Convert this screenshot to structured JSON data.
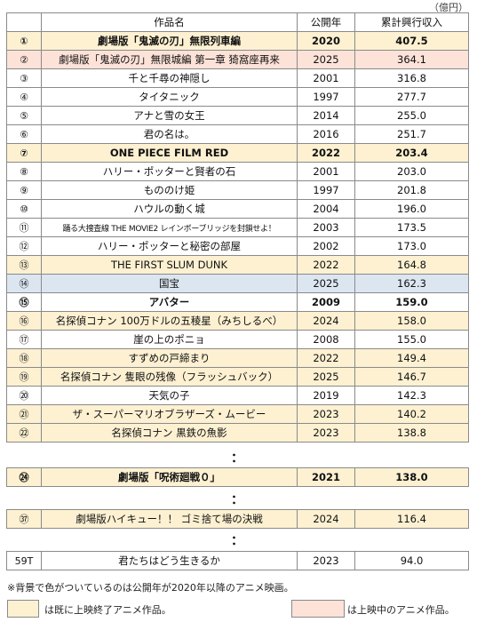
{
  "unit": "（億円）",
  "headers": {
    "rank": "",
    "title": "作品名",
    "year": "公開年",
    "revenue": "累計興行収入"
  },
  "rows": [
    {
      "rank": "①",
      "title": "劇場版「鬼滅の刃」無限列車編",
      "year": "2020",
      "revenue": "407.5"
    },
    {
      "rank": "②",
      "title": "劇場版「鬼滅の刃」無限城編 第一章 猗窩座再来",
      "year": "2025",
      "revenue": "364.1"
    },
    {
      "rank": "③",
      "title": "千と千尋の神隠し",
      "year": "2001",
      "revenue": "316.8"
    },
    {
      "rank": "④",
      "title": "タイタニック",
      "year": "1997",
      "revenue": "277.7"
    },
    {
      "rank": "⑤",
      "title": "アナと雪の女王",
      "year": "2014",
      "revenue": "255.0"
    },
    {
      "rank": "⑥",
      "title": "君の名は。",
      "year": "2016",
      "revenue": "251.7"
    },
    {
      "rank": "⑦",
      "title": "ONE PIECE FILM RED",
      "year": "2022",
      "revenue": "203.4"
    },
    {
      "rank": "⑧",
      "title": "ハリー・ポッターと賢者の石",
      "year": "2001",
      "revenue": "203.0"
    },
    {
      "rank": "⑨",
      "title": "もののけ姫",
      "year": "1997",
      "revenue": "201.8"
    },
    {
      "rank": "⑩",
      "title": "ハウルの動く城",
      "year": "2004",
      "revenue": "196.0"
    },
    {
      "rank": "⑪",
      "title": "踊る大捜査線 THE MOVIE2 レインボーブリッジを封鎖せよ！",
      "year": "2003",
      "revenue": "173.5"
    },
    {
      "rank": "⑫",
      "title": "ハリー・ポッターと秘密の部屋",
      "year": "2002",
      "revenue": "173.0"
    },
    {
      "rank": "⑬",
      "title": "THE FIRST SLUM DUNK",
      "year": "2022",
      "revenue": "164.8"
    },
    {
      "rank": "⑭",
      "title": "国宝",
      "year": "2025",
      "revenue": "162.3"
    },
    {
      "rank": "⑮",
      "title": "アバター",
      "year": "2009",
      "revenue": "159.0"
    },
    {
      "rank": "⑯",
      "title": "名探偵コナン 100万ドルの五稜星（みちしるべ）",
      "year": "2024",
      "revenue": "158.0"
    },
    {
      "rank": "⑰",
      "title": "崖の上のポニョ",
      "year": "2008",
      "revenue": "155.0"
    },
    {
      "rank": "⑱",
      "title": "すずめの戸締まり",
      "year": "2022",
      "revenue": "149.4"
    },
    {
      "rank": "⑲",
      "title": "名探偵コナン 隻眼の残像（フラッシュバック）",
      "year": "2025",
      "revenue": "146.7"
    },
    {
      "rank": "⑳",
      "title": "天気の子",
      "year": "2019",
      "revenue": "142.3"
    },
    {
      "rank": "㉑",
      "title": "ザ・スーパーマリオブラザーズ・ムービー",
      "year": "2023",
      "revenue": "140.2"
    },
    {
      "rank": "㉒",
      "title": "名探偵コナン 黒鉄の魚影",
      "year": "2023",
      "revenue": "138.8"
    }
  ],
  "extra_rows": [
    {
      "rank": "㉔",
      "title": "劇場版「呪術廻戦０」",
      "year": "2021",
      "revenue": "138.0"
    },
    {
      "rank": "㊲",
      "title": "劇場版ハイキュー！！ ゴミ捨て場の決戦",
      "year": "2024",
      "revenue": "116.4"
    },
    {
      "rank": "59T",
      "title": "君たちはどう生きるか",
      "year": "2023",
      "revenue": "94.0"
    }
  ],
  "ellipsis": "：",
  "note": "※背景で色がついているのは公開年が2020年以降のアニメ映画。",
  "legend": {
    "ended": "は既に上映終了アニメ作品。",
    "showing": "は上映中のアニメ作品。"
  },
  "colors": {
    "anime_ended": "#fdf1d2",
    "anime_showing": "#fde2d8",
    "highlight": "#dce6f1",
    "border": "#8a8a8a"
  }
}
